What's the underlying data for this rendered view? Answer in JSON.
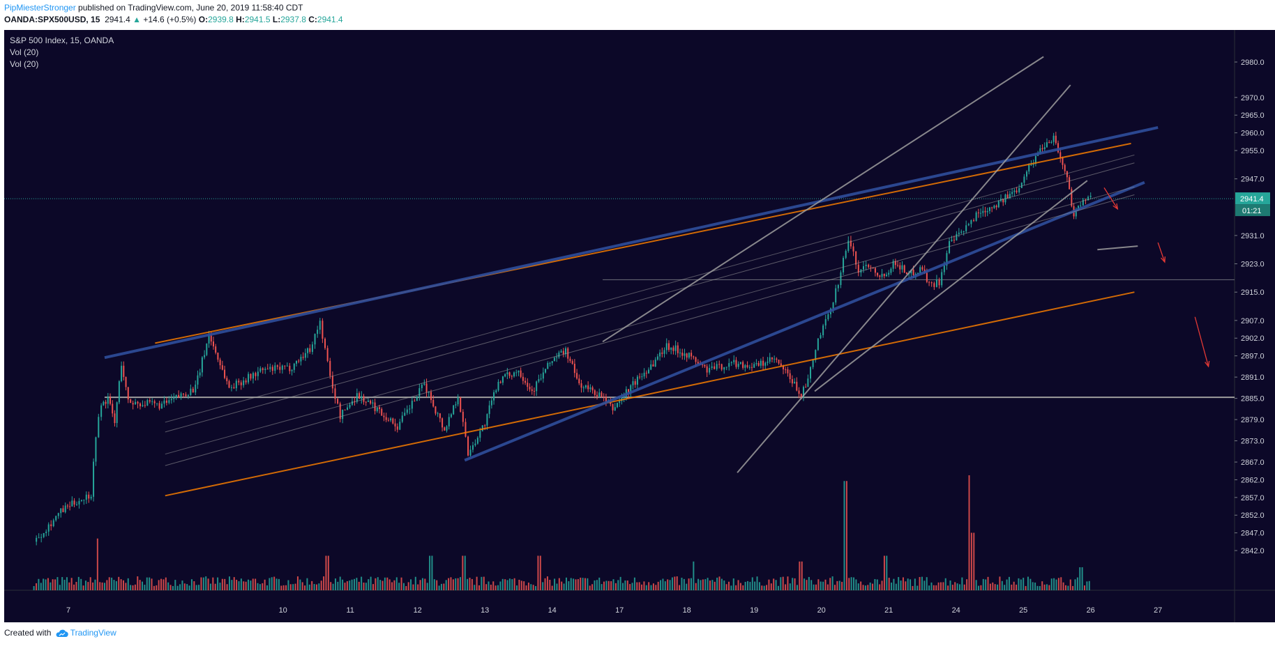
{
  "header": {
    "author": "PipMiesterStronger",
    "published_text": " published on TradingView.com, June 20, 2019 11:58:40 CDT",
    "symbol": "OANDA:SPX500USD, 15",
    "last": "2941.4",
    "change_arrow": "▲",
    "change": "+14.6 (+0.5%)",
    "o_label": "O:",
    "o_value": "2939.8",
    "h_label": "H:",
    "h_value": "2941.5",
    "l_label": "L:",
    "l_value": "2937.8",
    "c_label": "C:",
    "c_value": "2941.4"
  },
  "legend": {
    "title": "S&P 500 Index, 15, OANDA",
    "vol1": "Vol (20)",
    "vol2": "Vol (20)"
  },
  "footer": {
    "created_with": "Created with",
    "brand": "TradingView"
  },
  "colors": {
    "background": "#0c0828",
    "up": "#26a69a",
    "down": "#ef5350",
    "orange": "#f57c00",
    "blue": "#2f4e9c",
    "grey": "#9e9e9e",
    "arrow": "#e53935",
    "price_badge": "#26a69a"
  },
  "chart_data": {
    "type": "candlestick",
    "title": "S&P 500 Index, 15, OANDA",
    "y_ticks": [
      2980.0,
      2970.0,
      2965.0,
      2960.0,
      2955.0,
      2947.0,
      2941.4,
      2931.0,
      2923.0,
      2915.0,
      2907.0,
      2902.0,
      2897.0,
      2891.0,
      2885.0,
      2879.0,
      2873.0,
      2867.0,
      2862.0,
      2857.0,
      2852.0,
      2847.0,
      2842.0
    ],
    "x_ticks": [
      "7",
      "10",
      "11",
      "12",
      "13",
      "14",
      "17",
      "18",
      "19",
      "20",
      "21",
      "24",
      "25",
      "26",
      "27"
    ],
    "last_price": "2941.4",
    "countdown": "01:21",
    "price_path": [
      [
        6.6,
        2844.5
      ],
      [
        7.0,
        2853.0
      ],
      [
        7.2,
        2855.5
      ],
      [
        7.45,
        2858.0
      ],
      [
        7.52,
        2875.0
      ],
      [
        7.6,
        2883.0
      ],
      [
        7.7,
        2885.0
      ],
      [
        7.8,
        2878.0
      ],
      [
        7.9,
        2895.0
      ],
      [
        8.0,
        2884.0
      ],
      [
        8.5,
        2883.0
      ],
      [
        9.0,
        2888.0
      ],
      [
        9.2,
        2903.0
      ],
      [
        9.5,
        2888.0
      ],
      [
        10.0,
        2893.0
      ],
      [
        10.4,
        2893.5
      ],
      [
        10.7,
        2899.0
      ],
      [
        10.85,
        2906.5
      ],
      [
        11.0,
        2891.0
      ],
      [
        11.15,
        2880.0
      ],
      [
        11.4,
        2886.0
      ],
      [
        11.7,
        2882.0
      ],
      [
        12.0,
        2877.0
      ],
      [
        12.4,
        2889.0
      ],
      [
        12.7,
        2876.0
      ],
      [
        12.9,
        2886.0
      ],
      [
        13.05,
        2869.5
      ],
      [
        13.3,
        2878.0
      ],
      [
        13.5,
        2890.0
      ],
      [
        13.8,
        2893.0
      ],
      [
        14.0,
        2887.0
      ],
      [
        14.3,
        2896.0
      ],
      [
        14.5,
        2898.5
      ],
      [
        14.7,
        2889.0
      ],
      [
        15.0,
        2886.0
      ],
      [
        15.2,
        2882.0
      ],
      [
        15.5,
        2889.0
      ],
      [
        15.8,
        2895.0
      ],
      [
        16.0,
        2900.0
      ],
      [
        16.3,
        2897.5
      ],
      [
        16.6,
        2893.0
      ],
      [
        17.0,
        2895.0
      ],
      [
        17.3,
        2894.0
      ],
      [
        17.6,
        2896.0
      ],
      [
        17.8,
        2891.5
      ],
      [
        18.0,
        2886.0
      ],
      [
        18.1,
        2890.0
      ],
      [
        18.25,
        2901.5
      ],
      [
        18.4,
        2908.0
      ],
      [
        18.55,
        2918.0
      ],
      [
        18.7,
        2930.0
      ],
      [
        18.85,
        2921.0
      ],
      [
        19.0,
        2923.0
      ],
      [
        19.2,
        2919.5
      ],
      [
        19.4,
        2923.5
      ],
      [
        19.6,
        2920.0
      ],
      [
        19.8,
        2922.0
      ],
      [
        19.9,
        2917.0
      ],
      [
        20.05,
        2918.0
      ],
      [
        20.2,
        2928.5
      ],
      [
        20.45,
        2933.0
      ],
      [
        20.6,
        2937.0
      ],
      [
        20.8,
        2939.0
      ],
      [
        21.0,
        2941.0
      ],
      [
        21.2,
        2944.0
      ],
      [
        21.35,
        2949.5
      ],
      [
        21.45,
        2952.0
      ],
      [
        21.55,
        2955.5
      ],
      [
        21.75,
        2959.0
      ],
      [
        21.85,
        2953.0
      ],
      [
        21.95,
        2947.0
      ],
      [
        22.05,
        2937.0
      ],
      [
        22.15,
        2940.0
      ],
      [
        22.3,
        2941.4
      ]
    ],
    "volume_spikes": [
      {
        "day": 6.5,
        "level": 0.3
      },
      {
        "day": 7.55,
        "level": 0.45
      },
      {
        "day": 10.95,
        "level": 0.3
      },
      {
        "day": 12.5,
        "level": 0.3
      },
      {
        "day": 13.0,
        "level": 0.3
      },
      {
        "day": 14.1,
        "level": 0.3
      },
      {
        "day": 16.4,
        "level": 0.25
      },
      {
        "day": 18.0,
        "level": 0.25
      },
      {
        "day": 18.65,
        "level": 0.95
      },
      {
        "day": 19.25,
        "level": 0.3
      },
      {
        "day": 20.5,
        "level": 1.0
      },
      {
        "day": 20.55,
        "level": 0.5
      },
      {
        "day": 22.15,
        "level": 0.2
      }
    ],
    "horizontal_lines": [
      2885.3,
      2918.5,
      2941.4
    ],
    "channel_lines": [
      {
        "color": "orange",
        "from": [
          8.4,
          2900.6
        ],
        "to": [
          22.9,
          2957.0
        ]
      },
      {
        "color": "orange",
        "from": [
          8.55,
          2857.5
        ],
        "to": [
          22.95,
          2915.0
        ]
      },
      {
        "color": "blue",
        "from": [
          7.65,
          2896.5
        ],
        "to": [
          23.3,
          2961.5
        ]
      },
      {
        "color": "blue",
        "from": [
          13.0,
          2867.5
        ],
        "to": [
          23.1,
          2946.0
        ]
      },
      {
        "color": "grey",
        "from": [
          8.55,
          2875.5
        ],
        "to": [
          22.95,
          2951.5
        ]
      },
      {
        "color": "grey",
        "from": [
          8.55,
          2866.0
        ],
        "to": [
          22.95,
          2942.5
        ]
      },
      {
        "color": "grey",
        "from": [
          15.05,
          2901.0
        ],
        "to": [
          21.6,
          2981.5
        ]
      },
      {
        "color": "grey",
        "from": [
          17.05,
          2864.0
        ],
        "to": [
          22.0,
          2973.5
        ]
      },
      {
        "color": "grey",
        "from": [
          18.2,
          2887.0
        ],
        "to": [
          22.25,
          2946.5
        ]
      },
      {
        "color": "grey",
        "from": [
          22.4,
          2927.0
        ],
        "to": [
          23.0,
          2928.0
        ]
      }
    ],
    "arrows": [
      {
        "from": [
          22.5,
          2944.5
        ],
        "to": [
          22.7,
          2938.5
        ]
      },
      {
        "from": [
          23.3,
          2929.0
        ],
        "to": [
          23.4,
          2923.5
        ]
      },
      {
        "from": [
          23.85,
          2908.0
        ],
        "to": [
          24.05,
          2894.0
        ]
      }
    ]
  }
}
